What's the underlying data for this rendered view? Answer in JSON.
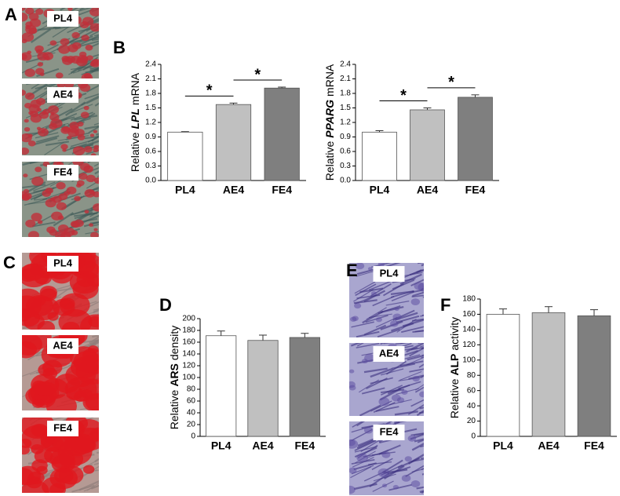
{
  "panel_letters": [
    "A",
    "B",
    "C",
    "D",
    "E",
    "F"
  ],
  "image_labels": [
    [
      "PL4",
      "AE4",
      "FE4"
    ],
    [
      "PL4",
      "AE4",
      "FE4"
    ],
    [
      "PL4",
      "AE4",
      "FE4"
    ]
  ],
  "chart_data": [
    {
      "type": "bar",
      "ylabel_parts": [
        "Relative",
        "LPL",
        "mRNA"
      ],
      "ylabel_emphasis": "bold-italic",
      "categories": [
        "PL4",
        "AE4",
        "FE4"
      ],
      "values": [
        1.0,
        1.57,
        1.91
      ],
      "errors": [
        0.01,
        0.03,
        0.02
      ],
      "colors": [
        "#ffffff",
        "#c0c0c0",
        "#7f7f7f"
      ],
      "ylim": [
        0,
        2.4
      ],
      "yticks": [
        {
          "value": 0,
          "label": "0.0"
        },
        0.3,
        0.6,
        0.9,
        1.2,
        1.5,
        1.8,
        2.1,
        2.4
      ],
      "annotations": [
        "*",
        "*"
      ]
    },
    {
      "type": "bar",
      "ylabel_parts": [
        "Relative",
        "PPARG",
        "mRNA"
      ],
      "ylabel_emphasis": "bold-italic",
      "categories": [
        "PL4",
        "AE4",
        "FE4"
      ],
      "values": [
        1.0,
        1.46,
        1.72
      ],
      "errors": [
        0.03,
        0.04,
        0.05
      ],
      "colors": [
        "#ffffff",
        "#c0c0c0",
        "#7f7f7f"
      ],
      "ylim": [
        0,
        2.4
      ],
      "yticks": [
        {
          "value": 0,
          "label": "0.0"
        },
        0.3,
        0.6,
        0.9,
        1.2,
        1.5,
        1.8,
        2.1,
        2.4
      ],
      "annotations": [
        "*",
        "*"
      ]
    },
    {
      "type": "bar",
      "ylabel_parts": [
        "Relative",
        "ARS",
        "density"
      ],
      "ylabel_emphasis": "bold",
      "categories": [
        "PL4",
        "AE4",
        "FE4"
      ],
      "values": [
        171,
        163,
        168
      ],
      "errors": [
        8,
        9,
        7
      ],
      "colors": [
        "#ffffff",
        "#c0c0c0",
        "#7f7f7f"
      ],
      "ylim": [
        0,
        200
      ],
      "yticks": [
        0,
        20,
        40,
        60,
        80,
        100,
        120,
        140,
        160,
        180,
        200
      ]
    },
    {
      "type": "bar",
      "ylabel_parts": [
        "Relative",
        "ALP",
        "activity"
      ],
      "ylabel_emphasis": "bold",
      "categories": [
        "PL4",
        "AE4",
        "FE4"
      ],
      "values": [
        160,
        162,
        158
      ],
      "errors": [
        7,
        8,
        8
      ],
      "colors": [
        "#ffffff",
        "#c0c0c0",
        "#7f7f7f"
      ],
      "ylim": [
        0,
        180
      ],
      "yticks": [
        0,
        20,
        40,
        60,
        80,
        100,
        120,
        140,
        160,
        180
      ]
    }
  ]
}
